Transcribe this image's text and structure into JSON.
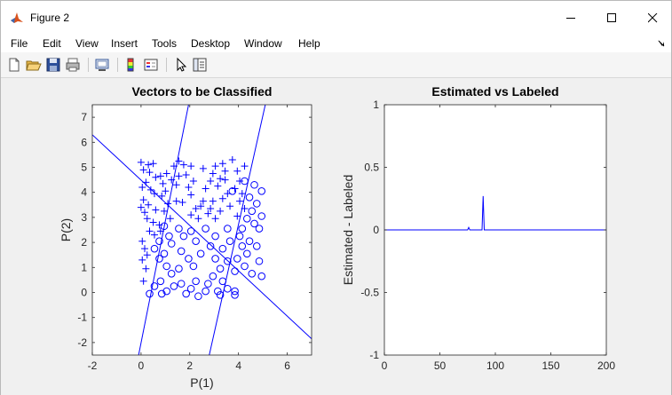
{
  "window": {
    "title": "Figure 2",
    "accent_icon_color": "#d9531e"
  },
  "menu": [
    "File",
    "Edit",
    "View",
    "Insert",
    "Tools",
    "Desktop",
    "Window",
    "Help"
  ],
  "toolbar_icons": [
    "new-figure-icon",
    "open-file-icon",
    "save-icon",
    "print-icon",
    "link-figure-icon",
    "colorbar-icon",
    "legend-icon",
    "pointer-icon",
    "property-editor-icon"
  ],
  "chart_data": [
    {
      "type": "scatter",
      "title": "Vectors to be Classified",
      "xlabel": "P(1)",
      "ylabel": "P(2)",
      "xlim": [
        -2,
        7
      ],
      "ylim": [
        -2.5,
        7.5
      ],
      "xticks": [
        -2,
        0,
        2,
        4,
        6
      ],
      "yticks": [
        -2,
        -1,
        0,
        1,
        2,
        3,
        4,
        5,
        6,
        7
      ],
      "grid": false,
      "color": "#0000ff",
      "series": [
        {
          "marker": "+",
          "points": [
            [
              0,
              5.2
            ],
            [
              0.3,
              5.1
            ],
            [
              0.5,
              5.15
            ],
            [
              0.1,
              4.9
            ],
            [
              0.35,
              4.8
            ],
            [
              0.6,
              4.6
            ],
            [
              0.2,
              4.4
            ],
            [
              0.05,
              4.2
            ],
            [
              0.4,
              4.1
            ],
            [
              0.55,
              3.95
            ],
            [
              0.1,
              3.7
            ],
            [
              0.3,
              3.5
            ],
            [
              0.0,
              3.4
            ],
            [
              0.15,
              3.2
            ],
            [
              0.6,
              3.3
            ],
            [
              0.25,
              2.95
            ],
            [
              0.5,
              2.8
            ],
            [
              0.75,
              2.7
            ],
            [
              0.35,
              2.45
            ],
            [
              0.55,
              2.3
            ],
            [
              0.05,
              2.05
            ],
            [
              0.15,
              1.75
            ],
            [
              0.25,
              1.5
            ],
            [
              0.05,
              1.3
            ],
            [
              0.2,
              0.95
            ],
            [
              0.1,
              0.45
            ],
            [
              0.8,
              4.65
            ],
            [
              0.9,
              4.35
            ],
            [
              1.0,
              4.05
            ],
            [
              0.85,
              3.85
            ],
            [
              1.1,
              3.55
            ],
            [
              0.95,
              3.25
            ],
            [
              1.2,
              2.95
            ],
            [
              0.8,
              2.45
            ],
            [
              1.05,
              4.75
            ],
            [
              1.25,
              4.5
            ],
            [
              1.45,
              4.3
            ],
            [
              1.55,
              4.65
            ],
            [
              1.35,
              5.05
            ],
            [
              1.55,
              5.25
            ],
            [
              1.75,
              5.1
            ],
            [
              2.05,
              5.05
            ],
            [
              1.85,
              4.7
            ],
            [
              2.15,
              4.45
            ],
            [
              1.95,
              4.2
            ],
            [
              2.05,
              3.9
            ],
            [
              1.7,
              3.6
            ],
            [
              2.25,
              3.35
            ],
            [
              2.05,
              3.1
            ],
            [
              2.55,
              3.65
            ],
            [
              2.45,
              3.45
            ],
            [
              2.75,
              3.15
            ],
            [
              2.65,
              4.15
            ],
            [
              2.85,
              4.45
            ],
            [
              2.95,
              4.75
            ],
            [
              2.55,
              4.95
            ],
            [
              3.05,
              5.05
            ],
            [
              3.35,
              5.15
            ],
            [
              3.45,
              4.85
            ],
            [
              3.25,
              4.55
            ],
            [
              3.15,
              4.25
            ],
            [
              3.55,
              3.95
            ],
            [
              3.35,
              3.75
            ],
            [
              3.65,
              3.45
            ],
            [
              3.25,
              3.25
            ],
            [
              3.05,
              2.95
            ],
            [
              2.85,
              3.35
            ],
            [
              3.95,
              4.85
            ],
            [
              4.05,
              4.45
            ],
            [
              3.85,
              4.15
            ],
            [
              4.15,
              3.95
            ],
            [
              4.05,
              3.65
            ],
            [
              4.25,
              3.35
            ],
            [
              3.95,
              3.05
            ],
            [
              3.45,
              4.5
            ],
            [
              3.75,
              5.3
            ],
            [
              4.25,
              5.05
            ],
            [
              2.35,
              2.95
            ],
            [
              2.95,
              3.65
            ],
            [
              1.45,
              3.65
            ]
          ]
        },
        {
          "marker": "o",
          "points": [
            [
              3.75,
              4.05
            ],
            [
              4.25,
              4.45
            ],
            [
              4.65,
              4.3
            ],
            [
              4.95,
              4.05
            ],
            [
              4.45,
              3.8
            ],
            [
              4.75,
              3.55
            ],
            [
              4.55,
              3.25
            ],
            [
              4.95,
              3.05
            ],
            [
              4.35,
              2.95
            ],
            [
              4.65,
              2.75
            ],
            [
              4.85,
              2.55
            ],
            [
              4.15,
              2.55
            ],
            [
              3.55,
              2.55
            ],
            [
              4.05,
              2.25
            ],
            [
              4.45,
              2.05
            ],
            [
              4.75,
              1.85
            ],
            [
              4.35,
              1.55
            ],
            [
              3.95,
              1.35
            ],
            [
              4.25,
              1.05
            ],
            [
              3.85,
              0.85
            ],
            [
              4.55,
              0.75
            ],
            [
              4.95,
              0.65
            ],
            [
              3.35,
              1.75
            ],
            [
              3.05,
              1.35
            ],
            [
              3.55,
              1.25
            ],
            [
              3.25,
              0.95
            ],
            [
              2.95,
              0.65
            ],
            [
              3.35,
              0.45
            ],
            [
              2.75,
              0.35
            ],
            [
              3.15,
              0.05
            ],
            [
              3.55,
              0.15
            ],
            [
              3.85,
              0.05
            ],
            [
              3.25,
              -0.1
            ],
            [
              2.65,
              0.05
            ],
            [
              2.25,
              0.45
            ],
            [
              2.05,
              0.15
            ],
            [
              1.85,
              -0.05
            ],
            [
              1.65,
              0.35
            ],
            [
              1.35,
              0.25
            ],
            [
              1.05,
              0.05
            ],
            [
              0.85,
              -0.05
            ],
            [
              0.55,
              0.25
            ],
            [
              0.35,
              -0.05
            ],
            [
              0.8,
              0.45
            ],
            [
              1.25,
              0.75
            ],
            [
              1.55,
              0.95
            ],
            [
              1.05,
              1.05
            ],
            [
              0.75,
              1.35
            ],
            [
              0.95,
              1.55
            ],
            [
              0.55,
              1.75
            ],
            [
              1.25,
              1.95
            ],
            [
              1.65,
              1.65
            ],
            [
              1.95,
              1.35
            ],
            [
              2.15,
              1.05
            ],
            [
              2.45,
              1.55
            ],
            [
              2.25,
              2.05
            ],
            [
              2.05,
              2.45
            ],
            [
              1.75,
              2.25
            ],
            [
              1.55,
              2.55
            ],
            [
              1.15,
              2.25
            ],
            [
              0.95,
              2.65
            ],
            [
              0.75,
              2.05
            ],
            [
              2.85,
              1.85
            ],
            [
              3.05,
              2.25
            ],
            [
              2.65,
              2.55
            ],
            [
              3.65,
              2.05
            ],
            [
              4.15,
              1.85
            ],
            [
              4.85,
              1.25
            ],
            [
              3.85,
              -0.1
            ],
            [
              2.35,
              -0.15
            ]
          ]
        }
      ],
      "lines": [
        {
          "x": [
            -2,
            7
          ],
          "y": [
            6.3,
            -1.85
          ]
        },
        {
          "x": [
            -0.1,
            1.95
          ],
          "y": [
            -2.5,
            7.5
          ]
        },
        {
          "x": [
            2.8,
            5.1
          ],
          "y": [
            -2.5,
            7.5
          ]
        }
      ]
    },
    {
      "type": "line",
      "title": "Estimated vs Labeled",
      "xlabel": "",
      "ylabel": "Estimated - Labeled",
      "xlim": [
        0,
        200
      ],
      "ylim": [
        -1,
        1
      ],
      "xticks": [
        0,
        50,
        100,
        150,
        200
      ],
      "yticks": [
        -1,
        -0.5,
        0,
        0.5,
        1
      ],
      "grid": false,
      "color": "#0000ff",
      "series": [
        {
          "x": [
            0,
            75,
            76,
            77,
            78,
            88,
            89,
            90,
            91,
            200
          ],
          "y": [
            0,
            0,
            0.02,
            0,
            0,
            0,
            0.27,
            0,
            0,
            0
          ]
        }
      ]
    }
  ]
}
